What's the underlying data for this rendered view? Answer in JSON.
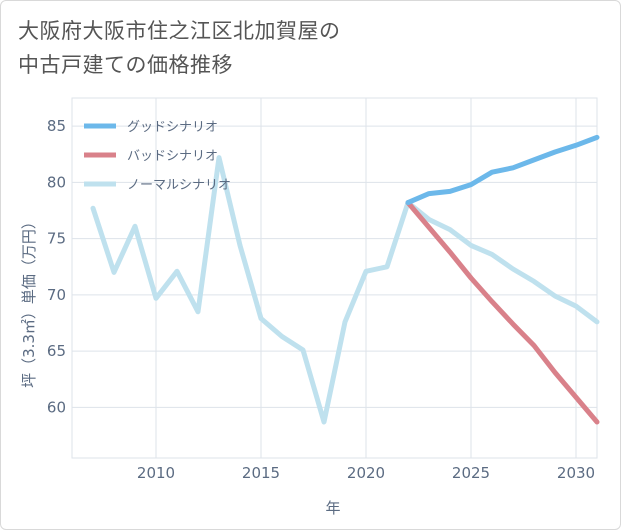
{
  "chart_data": {
    "type": "line",
    "title_lines": [
      "大阪府大阪市住之江区北加賀屋の",
      "中古戸建ての価格推移"
    ],
    "xlabel": "年",
    "ylabel": "坪（3.3㎡）単価（万円）",
    "xlim": [
      2006,
      2031
    ],
    "ylim": [
      55.5,
      87.5
    ],
    "x_ticks": [
      2010,
      2015,
      2020,
      2025,
      2030
    ],
    "y_ticks": [
      60,
      65,
      70,
      75,
      80,
      85
    ],
    "grid": true,
    "legend_position": "top-left",
    "series": [
      {
        "name": "グッドシナリオ",
        "color": "#6cb8ea",
        "x": [
          2022,
          2023,
          2024,
          2025,
          2026,
          2027,
          2028,
          2029,
          2030,
          2031
        ],
        "y": [
          78.2,
          79.0,
          79.2,
          79.8,
          80.9,
          81.3,
          82.0,
          82.7,
          83.3,
          84.0
        ]
      },
      {
        "name": "バッドシナリオ",
        "color": "#d9818a",
        "x": [
          2022,
          2023,
          2024,
          2025,
          2026,
          2027,
          2028,
          2029,
          2030,
          2031
        ],
        "y": [
          78.2,
          76.0,
          73.8,
          71.5,
          69.4,
          67.4,
          65.5,
          63.1,
          60.9,
          58.7
        ]
      },
      {
        "name": "ノーマルシナリオ",
        "color": "#bfe1ee",
        "x": [
          2007,
          2008,
          2009,
          2010,
          2011,
          2012,
          2013,
          2014,
          2015,
          2016,
          2017,
          2018,
          2019,
          2020,
          2021,
          2022,
          2023,
          2024,
          2025,
          2026,
          2027,
          2028,
          2029,
          2030,
          2031
        ],
        "y": [
          77.7,
          72.0,
          76.1,
          69.7,
          72.1,
          68.5,
          82.2,
          74.4,
          67.9,
          66.3,
          65.1,
          58.7,
          67.6,
          72.1,
          72.5,
          78.2,
          76.7,
          75.8,
          74.4,
          73.6,
          72.3,
          71.2,
          69.9,
          69.0,
          67.6
        ]
      }
    ]
  }
}
